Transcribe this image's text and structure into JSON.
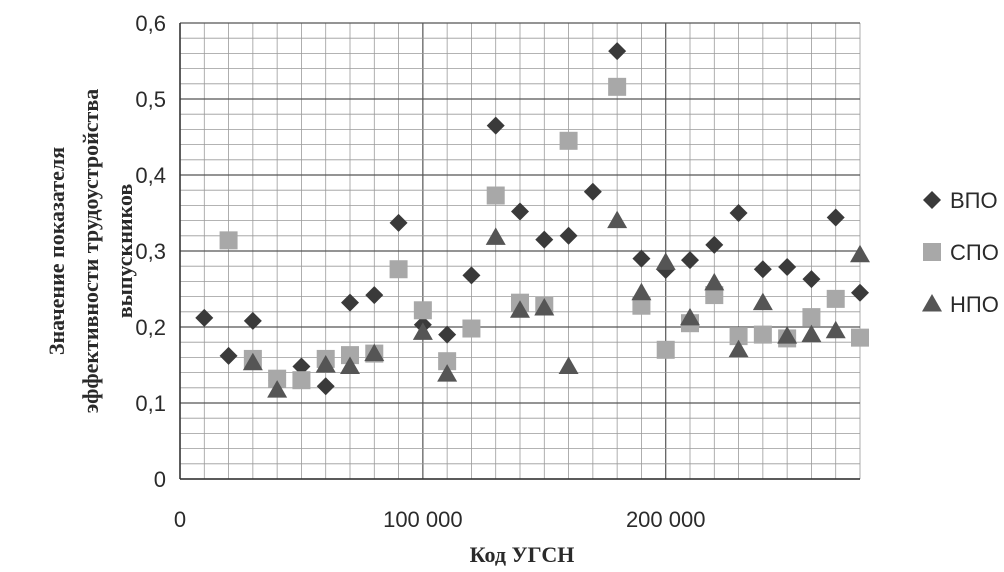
{
  "chart_data": {
    "type": "scatter",
    "title": "",
    "xlabel": "Код УГСН",
    "ylabel": "Значение показателя эффективности трудоустройства выпускников",
    "xlim": [
      0,
      280000
    ],
    "ylim": [
      0,
      0.6
    ],
    "x_ticks": [
      {
        "value": 0,
        "label": "0"
      },
      {
        "value": 100000,
        "label": "100 000"
      },
      {
        "value": 200000,
        "label": "200 000"
      }
    ],
    "y_ticks": [
      {
        "value": 0,
        "label": "0"
      },
      {
        "value": 0.1,
        "label": "0,1"
      },
      {
        "value": 0.2,
        "label": "0,2"
      },
      {
        "value": 0.3,
        "label": "0,3"
      },
      {
        "value": 0.4,
        "label": "0,4"
      },
      {
        "value": 0.5,
        "label": "0,5"
      },
      {
        "value": 0.6,
        "label": "0,6"
      }
    ],
    "grid": true,
    "legend_position": "right",
    "series": [
      {
        "name": "ВПО",
        "marker": "diamond",
        "color": "#3a3a3a",
        "points": [
          [
            10000,
            0.212
          ],
          [
            20000,
            0.162
          ],
          [
            30000,
            0.208
          ],
          [
            40000,
            0.13
          ],
          [
            50000,
            0.148
          ],
          [
            60000,
            0.122
          ],
          [
            70000,
            0.232
          ],
          [
            80000,
            0.242
          ],
          [
            90000,
            0.337
          ],
          [
            100000,
            0.203
          ],
          [
            110000,
            0.19
          ],
          [
            120000,
            0.268
          ],
          [
            130000,
            0.465
          ],
          [
            140000,
            0.352
          ],
          [
            150000,
            0.315
          ],
          [
            160000,
            0.32
          ],
          [
            170000,
            0.378
          ],
          [
            180000,
            0.563
          ],
          [
            190000,
            0.29
          ],
          [
            200000,
            0.275
          ],
          [
            210000,
            0.288
          ],
          [
            220000,
            0.308
          ],
          [
            230000,
            0.35
          ],
          [
            240000,
            0.276
          ],
          [
            250000,
            0.279
          ],
          [
            260000,
            0.263
          ],
          [
            270000,
            0.344
          ],
          [
            280000,
            0.245
          ]
        ]
      },
      {
        "name": "СПО",
        "marker": "square",
        "color": "#a8a8a8",
        "points": [
          [
            20000,
            0.314
          ],
          [
            30000,
            0.158
          ],
          [
            40000,
            0.132
          ],
          [
            50000,
            0.13
          ],
          [
            60000,
            0.158
          ],
          [
            70000,
            0.163
          ],
          [
            80000,
            0.165
          ],
          [
            90000,
            0.276
          ],
          [
            100000,
            0.222
          ],
          [
            110000,
            0.155
          ],
          [
            120000,
            0.198
          ],
          [
            130000,
            0.373
          ],
          [
            140000,
            0.232
          ],
          [
            150000,
            0.228
          ],
          [
            160000,
            0.445
          ],
          [
            180000,
            0.516
          ],
          [
            190000,
            0.228
          ],
          [
            200000,
            0.17
          ],
          [
            210000,
            0.205
          ],
          [
            220000,
            0.242
          ],
          [
            230000,
            0.188
          ],
          [
            240000,
            0.19
          ],
          [
            250000,
            0.185
          ],
          [
            260000,
            0.213
          ],
          [
            270000,
            0.237
          ],
          [
            280000,
            0.186
          ]
        ]
      },
      {
        "name": "НПО",
        "marker": "triangle",
        "color": "#555555",
        "points": [
          [
            30000,
            0.153
          ],
          [
            40000,
            0.117
          ],
          [
            60000,
            0.15
          ],
          [
            70000,
            0.148
          ],
          [
            80000,
            0.165
          ],
          [
            100000,
            0.193
          ],
          [
            110000,
            0.138
          ],
          [
            130000,
            0.318
          ],
          [
            140000,
            0.222
          ],
          [
            150000,
            0.225
          ],
          [
            160000,
            0.148
          ],
          [
            180000,
            0.34
          ],
          [
            190000,
            0.245
          ],
          [
            200000,
            0.285
          ],
          [
            210000,
            0.212
          ],
          [
            220000,
            0.258
          ],
          [
            230000,
            0.17
          ],
          [
            240000,
            0.232
          ],
          [
            250000,
            0.188
          ],
          [
            260000,
            0.19
          ],
          [
            270000,
            0.195
          ],
          [
            280000,
            0.295
          ]
        ]
      }
    ]
  }
}
